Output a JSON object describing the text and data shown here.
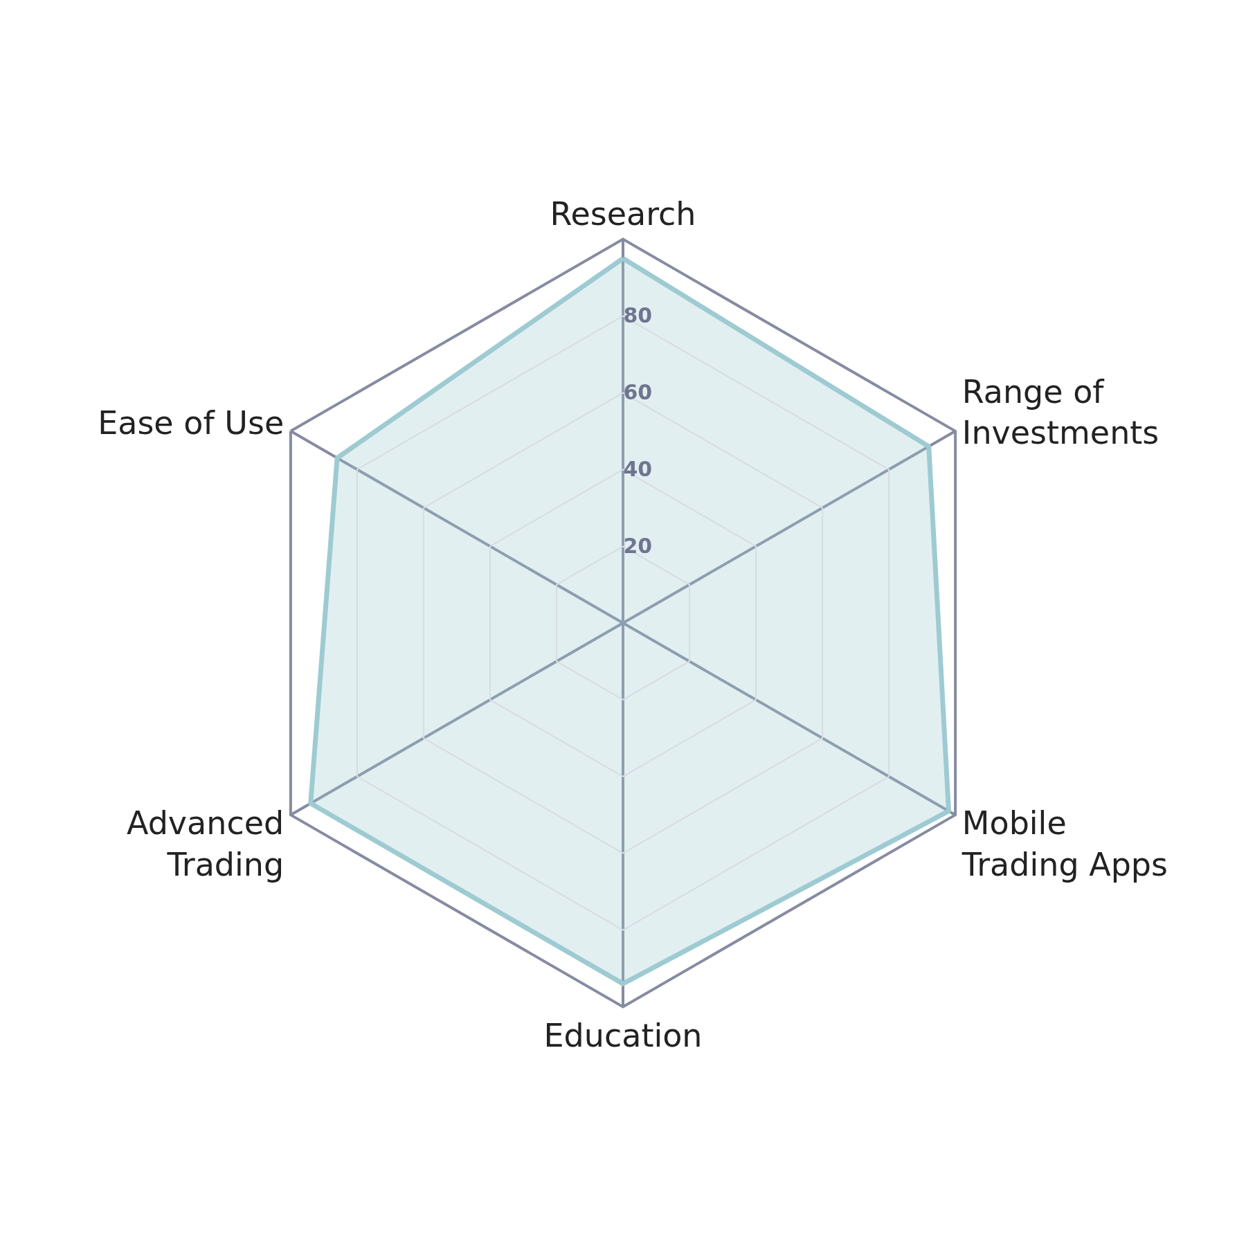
{
  "chart_data": {
    "type": "radar",
    "categories": [
      "Research",
      "Range of\nInvestments",
      "Mobile\nTrading Apps",
      "Education",
      "Advanced\nTrading",
      "Ease of Use"
    ],
    "series": [
      {
        "color": "#9ecbd2",
        "values": [
          95,
          92,
          98,
          94,
          94,
          86
        ]
      }
    ],
    "ylim": [
      0,
      100
    ],
    "yticks": [
      20,
      40,
      60,
      80
    ],
    "grid": true
  }
}
